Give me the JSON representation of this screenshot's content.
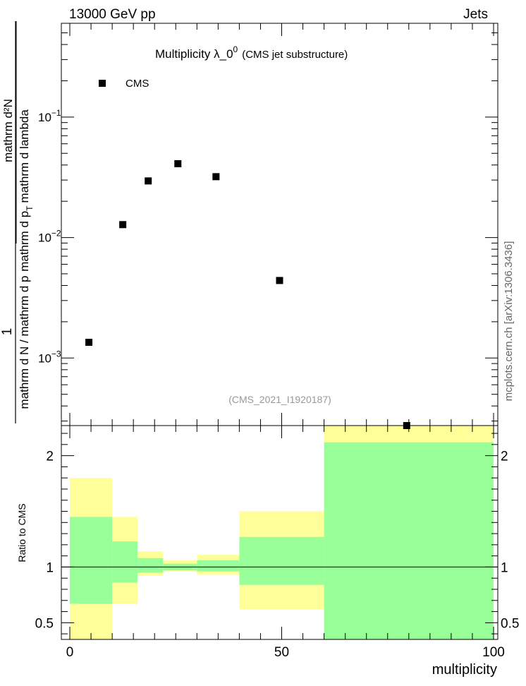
{
  "header": {
    "left_label": "13000 GeV pp",
    "right_label": "Jets"
  },
  "side_label": "mcplots.cern.ch [arXiv:1306.3436]",
  "watermark": "(CMS_2021_I1920187)",
  "chart_data": {
    "type": "scatter",
    "title_main": "Multiplicity  λ_0",
    "title_sup": "0",
    "title_sub": "(CMS jet substructure)",
    "ylabel_numerator": "1",
    "ylabel_denominator": "mathrm d N / mathrm d p",
    "ylabel_main_numerator": "mathrm d²N",
    "ylabel_main_denominator": "mathrm d p",
    "ylabel_main_denominator_sub": "T",
    "ylabel_main_tail": "mathrm d lambda",
    "xlabel": "multiplicity",
    "yscale": "log",
    "xlim": [
      -2,
      101
    ],
    "ylim": [
      0.000275,
      0.6
    ],
    "x_ticks": [
      0,
      50,
      100
    ],
    "x_tick_labels": [
      "0",
      "50",
      "100"
    ],
    "y_tick_labels": [
      {
        "value": 0.1,
        "base": "10",
        "exp": "−1"
      },
      {
        "value": 0.01,
        "base": "10",
        "exp": "−2"
      },
      {
        "value": 0.001,
        "base": "10",
        "exp": "−3"
      }
    ],
    "legend": {
      "label": "CMS",
      "position": "top-left"
    },
    "series": [
      {
        "name": "CMS",
        "color": "#000000",
        "marker": "square",
        "x": [
          4.5,
          12.5,
          18.5,
          25.5,
          34.5,
          49.5,
          79.5
        ],
        "y": [
          0.00135,
          0.0128,
          0.0295,
          0.041,
          0.032,
          0.0044,
          0.000275
        ]
      }
    ],
    "ratio": {
      "ylabel": "Ratio to CMS",
      "ylim": [
        0.35,
        2.27
      ],
      "y_ticks": [
        0.5,
        1,
        2
      ],
      "y_tick_labels": [
        "0.5",
        "1",
        "2"
      ],
      "reference_line": 1,
      "bins": [
        {
          "x0": 0,
          "x1": 10,
          "yellow": [
            0.35,
            1.8
          ],
          "green": [
            0.67,
            1.45
          ]
        },
        {
          "x0": 10,
          "x1": 16,
          "yellow": [
            0.67,
            1.45
          ],
          "green": [
            0.86,
            1.23
          ]
        },
        {
          "x0": 16,
          "x1": 22,
          "yellow": [
            0.92,
            1.14
          ],
          "green": [
            0.95,
            1.08
          ]
        },
        {
          "x0": 22,
          "x1": 30,
          "yellow": [
            0.96,
            1.06
          ],
          "green": [
            0.97,
            1.03
          ]
        },
        {
          "x0": 30,
          "x1": 40,
          "yellow": [
            0.93,
            1.11
          ],
          "green": [
            0.96,
            1.06
          ]
        },
        {
          "x0": 40,
          "x1": 60,
          "yellow": [
            0.62,
            1.5
          ],
          "green": [
            0.84,
            1.27
          ]
        },
        {
          "x0": 60,
          "x1": 100,
          "yellow": [
            0.35,
            2.27
          ],
          "green": [
            0.35,
            2.12
          ]
        }
      ],
      "colors": {
        "yellow": "#ffff99",
        "green": "#99ff99"
      }
    }
  }
}
